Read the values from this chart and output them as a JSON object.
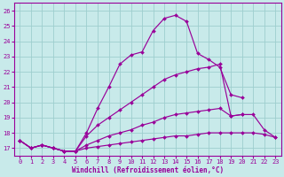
{
  "background_color": "#c8eaea",
  "grid_color": "#9ecece",
  "line_color": "#990099",
  "xlabel": "Windchill (Refroidissement éolien,°C)",
  "xlim": [
    -0.5,
    23.5
  ],
  "ylim": [
    16.5,
    26.5
  ],
  "yticks": [
    17,
    18,
    19,
    20,
    21,
    22,
    23,
    24,
    25,
    26
  ],
  "xticks": [
    0,
    1,
    2,
    3,
    4,
    5,
    6,
    7,
    8,
    9,
    10,
    11,
    12,
    13,
    14,
    15,
    16,
    17,
    18,
    19,
    20,
    21,
    22,
    23
  ],
  "series": [
    {
      "x": [
        0,
        1,
        2,
        3,
        4,
        5,
        6,
        7,
        8,
        9,
        10,
        11,
        12,
        13,
        14,
        15,
        16,
        17,
        18,
        19,
        20,
        21,
        22,
        23
      ],
      "y": [
        17.5,
        17.0,
        17.2,
        17.0,
        16.8,
        16.8,
        18.0,
        19.6,
        21.0,
        22.5,
        23.1,
        23.3,
        24.7,
        25.5,
        25.7,
        25.3,
        23.2,
        22.8,
        22.3,
        20.5,
        20.3,
        null,
        null,
        null
      ]
    },
    {
      "x": [
        0,
        1,
        2,
        3,
        4,
        5,
        6,
        7,
        8,
        9,
        10,
        11,
        12,
        13,
        14,
        15,
        16,
        17,
        18,
        19,
        20,
        21,
        22,
        23
      ],
      "y": [
        17.5,
        17.0,
        17.2,
        17.0,
        16.8,
        16.8,
        17.8,
        18.5,
        19.0,
        19.5,
        20.0,
        20.5,
        21.0,
        21.5,
        21.8,
        22.0,
        22.2,
        22.3,
        22.5,
        19.1,
        19.2,
        null,
        null,
        null
      ]
    },
    {
      "x": [
        0,
        1,
        2,
        3,
        4,
        5,
        6,
        7,
        8,
        9,
        10,
        11,
        12,
        13,
        14,
        15,
        16,
        17,
        18,
        19,
        20,
        21,
        22,
        23
      ],
      "y": [
        17.5,
        17.0,
        17.2,
        17.0,
        16.8,
        16.8,
        17.2,
        17.5,
        17.8,
        18.0,
        18.2,
        18.5,
        18.7,
        19.0,
        19.2,
        19.3,
        19.4,
        19.5,
        19.6,
        19.1,
        19.2,
        19.2,
        18.2,
        17.7
      ]
    },
    {
      "x": [
        0,
        1,
        2,
        3,
        4,
        5,
        6,
        7,
        8,
        9,
        10,
        11,
        12,
        13,
        14,
        15,
        16,
        17,
        18,
        19,
        20,
        21,
        22,
        23
      ],
      "y": [
        17.5,
        17.0,
        17.2,
        17.0,
        16.8,
        16.8,
        17.0,
        17.1,
        17.2,
        17.3,
        17.4,
        17.5,
        17.6,
        17.7,
        17.8,
        17.8,
        17.9,
        18.0,
        18.0,
        18.0,
        18.0,
        18.0,
        17.9,
        17.7
      ]
    }
  ]
}
